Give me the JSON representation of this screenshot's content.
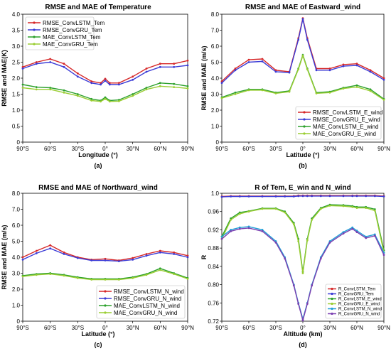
{
  "chart_data": [
    {
      "type": "line",
      "title": "RMSE and MAE of Temperature",
      "xlabel": "Longitude (°)",
      "ylabel": "RMSE and MAE(K)",
      "panel_label": "(a)",
      "xlim": [
        -90,
        90
      ],
      "ylim": [
        0,
        4.0
      ],
      "xticks": [
        -90,
        -60,
        -30,
        0,
        30,
        60,
        90
      ],
      "xtick_labels": [
        "90°S",
        "60°S",
        "30°S",
        "0°",
        "30°N",
        "60°N",
        "90°N"
      ],
      "yticks": [
        0,
        0.5,
        1.0,
        1.5,
        2.0,
        2.5,
        3.0,
        3.5,
        4.0
      ],
      "ytick_labels": [
        "0",
        "0.5",
        "1.0",
        "1.5",
        "2.0",
        "2.5",
        "3.0",
        "3.5",
        "4.0"
      ],
      "legend_position": "top-left",
      "x": [
        -90,
        -75,
        -60,
        -45,
        -30,
        -15,
        -5,
        0,
        5,
        15,
        30,
        45,
        60,
        75,
        90
      ],
      "series": [
        {
          "name": "RMSE_ConvLSTM_Tem",
          "color": "#d62728",
          "values": [
            2.35,
            2.5,
            2.6,
            2.45,
            2.15,
            1.9,
            1.85,
            1.98,
            1.85,
            1.85,
            2.05,
            2.3,
            2.45,
            2.45,
            2.55
          ]
        },
        {
          "name": "RMSE_ConvGRU_Tem",
          "color": "#3b3bd6",
          "values": [
            2.3,
            2.45,
            2.5,
            2.35,
            2.05,
            1.85,
            1.8,
            1.92,
            1.8,
            1.8,
            1.95,
            2.2,
            2.35,
            2.35,
            2.4
          ]
        },
        {
          "name": "MAE_ConvLSTM_Tem",
          "color": "#2ca02c",
          "values": [
            1.8,
            1.72,
            1.7,
            1.62,
            1.5,
            1.35,
            1.3,
            1.4,
            1.3,
            1.32,
            1.5,
            1.7,
            1.85,
            1.82,
            1.75
          ]
        },
        {
          "name": "MAE_ConvGRU_Tem",
          "color": "#9acd32",
          "values": [
            1.7,
            1.65,
            1.65,
            1.55,
            1.45,
            1.3,
            1.27,
            1.35,
            1.27,
            1.28,
            1.45,
            1.65,
            1.75,
            1.72,
            1.68
          ]
        }
      ]
    },
    {
      "type": "line",
      "title": "RMSE and MAE of Eastward_wind",
      "xlabel": "Latitude (°)",
      "ylabel": "RMSE and MAE (m/s)",
      "panel_label": "(b)",
      "xlim": [
        -90,
        90
      ],
      "ylim": [
        0,
        8.0
      ],
      "xticks": [
        -90,
        -60,
        -30,
        0,
        30,
        60,
        90
      ],
      "xtick_labels": [
        "90°S",
        "60°S",
        "30°S",
        "0°",
        "30°N",
        "60°N",
        "90°N"
      ],
      "yticks": [
        0,
        1.0,
        2.0,
        3.0,
        4.0,
        5.0,
        6.0,
        7.0,
        8.0
      ],
      "ytick_labels": [
        "0",
        "1.0",
        "2.0",
        "3.0",
        "4.0",
        "5.0",
        "6.0",
        "7.0",
        "8.0"
      ],
      "legend_position": "bottom-right",
      "x": [
        -90,
        -75,
        -60,
        -45,
        -30,
        -15,
        -5,
        0,
        5,
        15,
        30,
        45,
        60,
        75,
        90
      ],
      "series": [
        {
          "name": "RMSE_ConvLSTM_E_wind",
          "color": "#d62728",
          "values": [
            3.8,
            4.6,
            5.15,
            5.2,
            4.5,
            4.4,
            6.5,
            7.75,
            6.5,
            4.6,
            4.6,
            4.85,
            4.9,
            4.5,
            4.0
          ]
        },
        {
          "name": "RMSE_ConvGRU_E_wind",
          "color": "#3b3bd6",
          "values": [
            3.7,
            4.5,
            5.0,
            5.05,
            4.4,
            4.35,
            6.4,
            7.7,
            6.4,
            4.5,
            4.5,
            4.75,
            4.8,
            4.4,
            3.9
          ]
        },
        {
          "name": "MAE_ConvLSTM_E_wind",
          "color": "#2ca02c",
          "values": [
            2.8,
            3.1,
            3.3,
            3.3,
            3.1,
            3.2,
            4.6,
            5.45,
            4.6,
            3.1,
            3.15,
            3.4,
            3.55,
            3.3,
            2.7
          ]
        },
        {
          "name": "MAE_ConvGRU_E_wind",
          "color": "#9acd32",
          "values": [
            2.75,
            3.0,
            3.25,
            3.25,
            3.05,
            3.15,
            4.55,
            5.4,
            4.55,
            3.05,
            3.1,
            3.35,
            3.45,
            3.2,
            2.65
          ]
        }
      ]
    },
    {
      "type": "line",
      "title": "RMSE and MAE of Northward_wind",
      "xlabel": "Latitude (°)",
      "ylabel": "RMSE and MAE (m/s)",
      "panel_label": "(c)",
      "xlim": [
        -90,
        90
      ],
      "ylim": [
        0,
        8.0
      ],
      "xticks": [
        -90,
        -60,
        -30,
        0,
        30,
        60,
        90
      ],
      "xtick_labels": [
        "90°S",
        "60°S",
        "30°S",
        "0°",
        "30°N",
        "60°N",
        "90°N"
      ],
      "yticks": [
        0,
        1.0,
        2.0,
        3.0,
        4.0,
        5.0,
        6.0,
        7.0,
        8.0
      ],
      "ytick_labels": [
        "0",
        "1.0",
        "2.0",
        "3.0",
        "4.0",
        "5.0",
        "6.0",
        "7.0",
        "8.0"
      ],
      "legend_position": "bottom-right",
      "x": [
        -90,
        -75,
        -60,
        -45,
        -30,
        -15,
        0,
        15,
        30,
        45,
        60,
        75,
        90
      ],
      "series": [
        {
          "name": "RMSE_ConvLSTM_N_wind",
          "color": "#d62728",
          "values": [
            4.0,
            4.4,
            4.75,
            4.3,
            4.0,
            3.85,
            3.9,
            3.8,
            3.95,
            4.2,
            4.4,
            4.3,
            4.1
          ]
        },
        {
          "name": "RMSE_ConvGRU_N_wind",
          "color": "#3b3bd6",
          "values": [
            3.85,
            4.25,
            4.55,
            4.2,
            3.95,
            3.8,
            3.8,
            3.75,
            3.85,
            4.1,
            4.3,
            4.2,
            4.0
          ]
        },
        {
          "name": "MAE_ConvLSTM_N_wind",
          "color": "#2ca02c",
          "values": [
            2.85,
            2.95,
            3.0,
            2.9,
            2.75,
            2.65,
            2.65,
            2.65,
            2.75,
            2.95,
            3.3,
            3.0,
            2.7
          ]
        },
        {
          "name": "MAE_ConvGRU_N_wind",
          "color": "#9acd32",
          "values": [
            2.8,
            2.9,
            2.95,
            2.85,
            2.7,
            2.6,
            2.6,
            2.6,
            2.7,
            2.9,
            3.2,
            2.95,
            2.65
          ]
        }
      ]
    },
    {
      "type": "line",
      "title": "R of Tem, E_win and N_wind",
      "xlabel": "Altitude (km)",
      "ylabel": "R",
      "panel_label": "(d)",
      "xlim": [
        -90,
        90
      ],
      "ylim": [
        0.72,
        1.0
      ],
      "xticks": [
        -90,
        -60,
        -30,
        0,
        30,
        60,
        90
      ],
      "xtick_labels": [
        "90°S",
        "60°S",
        "30°S",
        "0°",
        "30°N",
        "60°N",
        "90°N"
      ],
      "yticks": [
        0.72,
        0.76,
        0.8,
        0.84,
        0.88,
        0.92,
        0.96,
        1.0
      ],
      "ytick_labels": [
        "0.72",
        "0.76",
        "0.80",
        "0.84",
        "0.88",
        "0.92",
        "0.96",
        "1.0"
      ],
      "legend_position": "bottom-right",
      "x": [
        -90,
        -80,
        -70,
        -60,
        -45,
        -30,
        -20,
        -10,
        -5,
        0,
        5,
        10,
        20,
        30,
        45,
        55,
        60,
        70,
        80,
        90
      ],
      "series": [
        {
          "name": "R_ConvLSTM_Tem",
          "color": "#d62728",
          "values": [
            0.993,
            0.994,
            0.994,
            0.994,
            0.994,
            0.994,
            0.994,
            0.994,
            0.995,
            0.995,
            0.995,
            0.995,
            0.995,
            0.995,
            0.995,
            0.995,
            0.995,
            0.995,
            0.995,
            0.994
          ]
        },
        {
          "name": "R_ConvGRU_Tem",
          "color": "#3b3bd6",
          "values": [
            0.992,
            0.993,
            0.993,
            0.993,
            0.993,
            0.993,
            0.993,
            0.993,
            0.994,
            0.994,
            0.994,
            0.994,
            0.994,
            0.994,
            0.994,
            0.994,
            0.994,
            0.994,
            0.994,
            0.993
          ]
        },
        {
          "name": "R_ConvLSTM_E_wind",
          "color": "#2ca02c",
          "values": [
            0.905,
            0.945,
            0.958,
            0.961,
            0.967,
            0.967,
            0.96,
            0.935,
            0.9,
            0.828,
            0.9,
            0.945,
            0.968,
            0.975,
            0.974,
            0.972,
            0.97,
            0.97,
            0.965,
            0.875
          ]
        },
        {
          "name": "R_ConvGRU_E_wind",
          "color": "#9acd32",
          "values": [
            0.9,
            0.942,
            0.955,
            0.96,
            0.966,
            0.966,
            0.958,
            0.932,
            0.895,
            0.825,
            0.897,
            0.942,
            0.966,
            0.973,
            0.972,
            0.97,
            0.968,
            0.968,
            0.962,
            0.87
          ]
        },
        {
          "name": "R_ConvLSTM_N_wind",
          "color": "#1f9fd6",
          "values": [
            0.905,
            0.92,
            0.925,
            0.927,
            0.92,
            0.895,
            0.86,
            0.8,
            0.76,
            0.725,
            0.76,
            0.8,
            0.86,
            0.895,
            0.915,
            0.925,
            0.918,
            0.905,
            0.91,
            0.87
          ]
        },
        {
          "name": "R_ConvGRU_N_wind",
          "color": "#7b3fb0",
          "values": [
            0.9,
            0.917,
            0.922,
            0.924,
            0.917,
            0.892,
            0.857,
            0.798,
            0.758,
            0.722,
            0.758,
            0.798,
            0.857,
            0.892,
            0.912,
            0.922,
            0.915,
            0.902,
            0.907,
            0.865
          ]
        }
      ]
    }
  ]
}
